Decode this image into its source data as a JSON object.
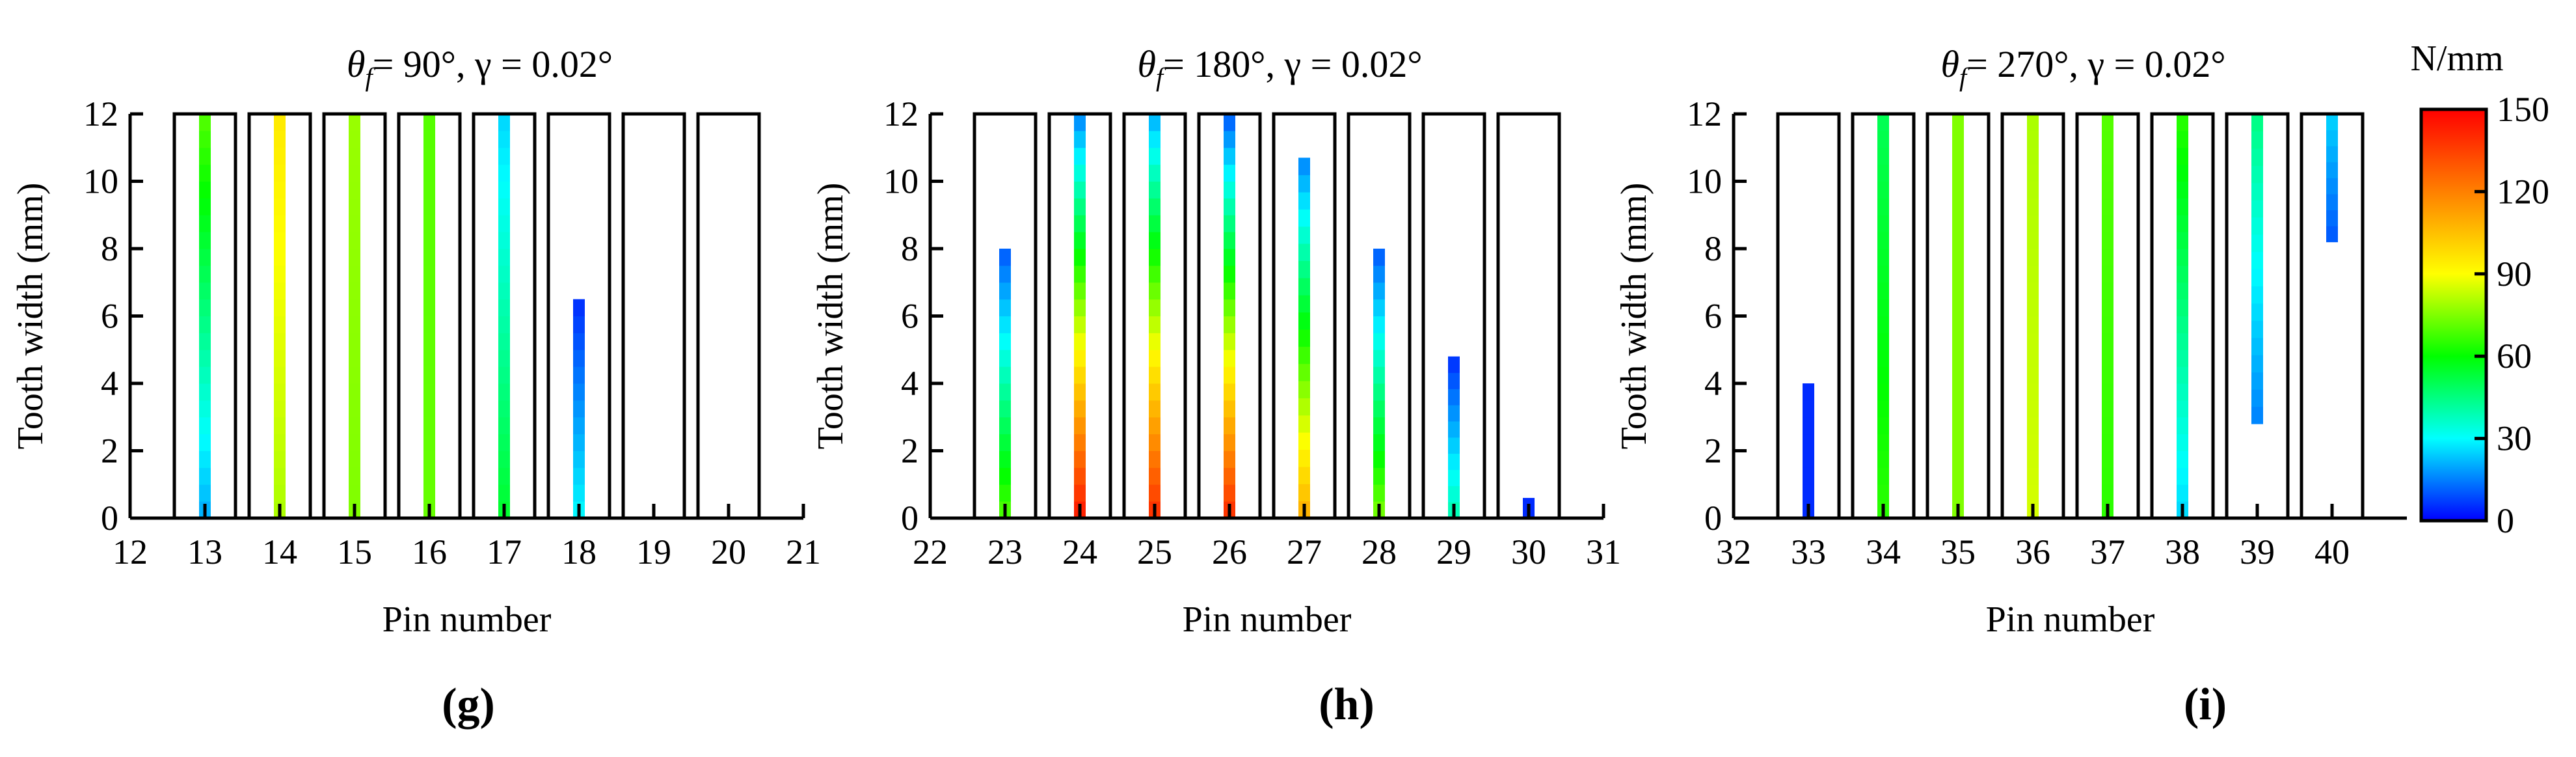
{
  "figure": {
    "description_units": "N/mm",
    "colorbar": {
      "label": "N/mm",
      "min": 0,
      "max": 150,
      "ticks": [
        0,
        30,
        60,
        90,
        120,
        150
      ],
      "tick_labels": [
        "0",
        "30",
        "60",
        "90",
        "120",
        "150"
      ],
      "colormap": [
        "#0000ff",
        "#00ffff",
        "#00ff00",
        "#ffff00",
        "#ff8000",
        "#ff0000"
      ]
    }
  },
  "chart_data": [
    {
      "type": "heatmap",
      "panel_label": "(g)",
      "title_prefix": "θ",
      "title_sub": "f",
      "title_rest": "= 90°, γ = 0.02°",
      "xlabel": "Pin number",
      "ylabel": "Tooth width (mm)",
      "xlim": [
        12,
        21
      ],
      "ylim": [
        0,
        12
      ],
      "xticks": [
        12,
        13,
        14,
        15,
        16,
        17,
        18,
        19,
        20,
        21
      ],
      "yticks": [
        0,
        2,
        4,
        6,
        8,
        10,
        12
      ],
      "boxes": [
        13,
        14,
        15,
        16,
        17,
        18,
        19,
        20
      ],
      "series": [
        {
          "pin": 13,
          "y0": 0,
          "y1": 12,
          "v0": 20,
          "v1": 70
        },
        {
          "pin": 14,
          "y0": 0,
          "y1": 12,
          "v0": 80,
          "v1": 95
        },
        {
          "pin": 15,
          "y0": 0,
          "y1": 12,
          "v0": 75,
          "v1": 78
        },
        {
          "pin": 16,
          "y0": 0,
          "y1": 12,
          "v0": 72,
          "v1": 70
        },
        {
          "pin": 17,
          "y0": 0,
          "y1": 12,
          "v0": 55,
          "v1": 25
        },
        {
          "pin": 18,
          "y0": 0,
          "y1": 6.5,
          "v0": 30,
          "v1": 5
        }
      ]
    },
    {
      "type": "heatmap",
      "panel_label": "(h)",
      "title_prefix": "θ",
      "title_sub": "f",
      "title_rest": "= 180°, γ = 0.02°",
      "xlabel": "Pin number",
      "ylabel": "Tooth width (mm)",
      "xlim": [
        22,
        31
      ],
      "ylim": [
        0,
        12
      ],
      "xticks": [
        22,
        23,
        24,
        25,
        26,
        27,
        28,
        29,
        30,
        31
      ],
      "yticks": [
        0,
        2,
        4,
        6,
        8,
        10,
        12
      ],
      "boxes": [
        23,
        24,
        25,
        26,
        27,
        28,
        29,
        30
      ],
      "series": [
        {
          "pin": 23,
          "y0": 0,
          "y1": 8,
          "v0": 70,
          "v1": 10
        },
        {
          "pin": 24,
          "y0": 0,
          "y1": 12,
          "v0": 145,
          "v1": 15
        },
        {
          "pin": 25,
          "y0": 0,
          "y1": 12,
          "v0": 140,
          "v1": 20
        },
        {
          "pin": 26,
          "y0": 0,
          "y1": 12,
          "v0": 140,
          "v1": 10
        },
        {
          "pin": 27,
          "y0": 0,
          "y1": 10.7,
          "v0": 110,
          "v1": 15
        },
        {
          "pin": 28,
          "y0": 0,
          "y1": 8,
          "v0": 75,
          "v1": 10
        },
        {
          "pin": 29,
          "y0": 0,
          "y1": 4.8,
          "v0": 40,
          "v1": 5
        },
        {
          "pin": 30,
          "y0": 0,
          "y1": 0.6,
          "v0": 5,
          "v1": 5
        }
      ]
    },
    {
      "type": "heatmap",
      "panel_label": "(i)",
      "title_prefix": "θ",
      "title_sub": "f",
      "title_rest": "= 270°, γ = 0.02°",
      "xlabel": "Pin number",
      "ylabel": "Tooth width (mm)",
      "xlim": [
        32,
        41
      ],
      "ylim": [
        0,
        12
      ],
      "xticks": [
        32,
        33,
        34,
        35,
        36,
        37,
        38,
        39,
        40
      ],
      "yticks": [
        0,
        2,
        4,
        6,
        8,
        10,
        12
      ],
      "boxes": [
        33,
        34,
        35,
        36,
        37,
        38,
        39,
        40
      ],
      "series": [
        {
          "pin": 33,
          "y0": 0,
          "y1": 4,
          "v0": 5,
          "v1": 5
        },
        {
          "pin": 34,
          "y0": 0,
          "y1": 12,
          "v0": 65,
          "v1": 50
        },
        {
          "pin": 35,
          "y0": 0,
          "y1": 12,
          "v0": 75,
          "v1": 75
        },
        {
          "pin": 36,
          "y0": 0,
          "y1": 12,
          "v0": 85,
          "v1": 80
        },
        {
          "pin": 37,
          "y0": 0,
          "y1": 12,
          "v0": 65,
          "v1": 70
        },
        {
          "pin": 38,
          "y0": 0,
          "y1": 12,
          "v0": 25,
          "v1": 65
        },
        {
          "pin": 39,
          "y0": 2.8,
          "y1": 12,
          "v0": 15,
          "v1": 45
        },
        {
          "pin": 40,
          "y0": 8.2,
          "y1": 12,
          "v0": 10,
          "v1": 25
        }
      ]
    }
  ]
}
